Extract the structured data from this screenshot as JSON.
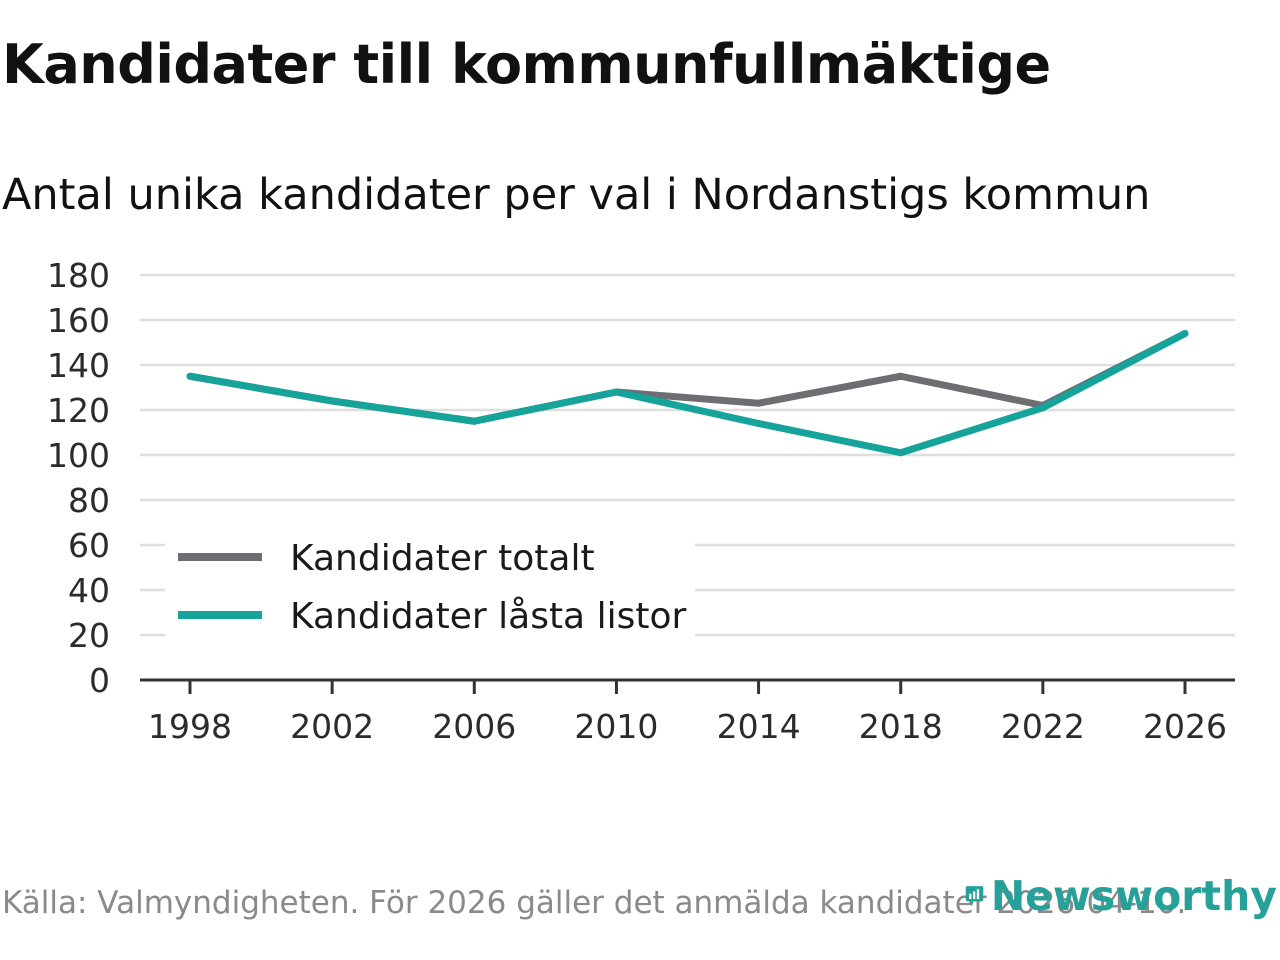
{
  "title": "Kandidater till kommunfullmäktige",
  "subtitle": "Antal unika kandidater per val i Nordanstigs kommun",
  "source": "Källa: Valmyndigheten. För 2026 gäller det anmälda kandidater 2026-04-10.",
  "logo_text": "Newsworthy",
  "colors": {
    "gray": "#6e6d72",
    "teal": "#16a39a",
    "grid": "#dedede",
    "axis": "#333333"
  },
  "chart_data": {
    "type": "line",
    "title": "Kandidater till kommunfullmäktige",
    "subtitle": "Antal unika kandidater per val i Nordanstigs kommun",
    "xlabel": "",
    "ylabel": "",
    "x": [
      "1998",
      "2002",
      "2006",
      "2010",
      "2014",
      "2018",
      "2022",
      "2026"
    ],
    "ylim": [
      0,
      180
    ],
    "yticks": [
      "0",
      "20",
      "40",
      "60",
      "80",
      "100",
      "120",
      "140",
      "160",
      "180"
    ],
    "legend_position": "bottom-left",
    "series": [
      {
        "name": "Kandidater totalt",
        "color": "#6e6d72",
        "values": [
          135,
          124,
          115,
          128,
          123,
          135,
          122,
          154
        ]
      },
      {
        "name": "Kandidater låsta listor",
        "color": "#16a39a",
        "values": [
          135,
          124,
          115,
          128,
          114,
          101,
          121,
          154
        ]
      }
    ]
  }
}
